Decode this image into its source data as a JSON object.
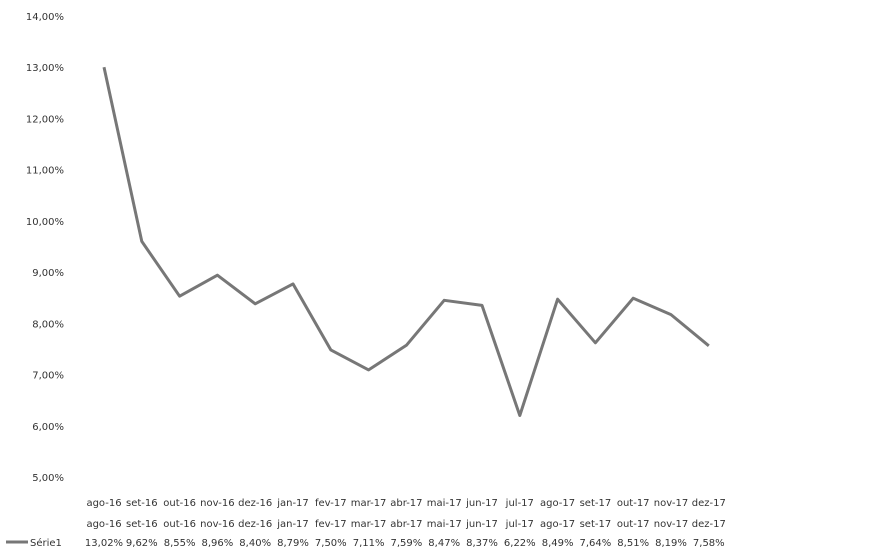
{
  "chart_data": {
    "type": "line",
    "title": "",
    "xlabel": "",
    "ylabel": "",
    "categories": [
      "ago-16",
      "set-16",
      "out-16",
      "nov-16",
      "dez-16",
      "jan-17",
      "fev-17",
      "mar-17",
      "abr-17",
      "mai-17",
      "jun-17",
      "jul-17",
      "ago-17",
      "set-17",
      "out-17",
      "nov-17",
      "dez-17"
    ],
    "series": [
      {
        "name": "Série1",
        "color": "#777777",
        "values": [
          13.02,
          9.62,
          8.55,
          8.96,
          8.4,
          8.79,
          7.5,
          7.11,
          7.59,
          8.47,
          8.37,
          6.22,
          8.49,
          7.64,
          8.51,
          8.19,
          7.58
        ],
        "labels": [
          "13,02%",
          "9,62%",
          "8,55%",
          "8,96%",
          "8,40%",
          "8,79%",
          "7,50%",
          "7,11%",
          "7,59%",
          "8,47%",
          "8,37%",
          "6,22%",
          "8,49%",
          "7,64%",
          "8,51%",
          "8,19%",
          "7,58%"
        ]
      }
    ],
    "ylim": [
      5,
      14
    ],
    "yticks": [
      "5,00%",
      "6,00%",
      "7,00%",
      "8,00%",
      "9,00%",
      "10,00%",
      "11,00%",
      "12,00%",
      "13,00%",
      "14,00%"
    ],
    "grid": false,
    "legend": "data-table-left"
  }
}
